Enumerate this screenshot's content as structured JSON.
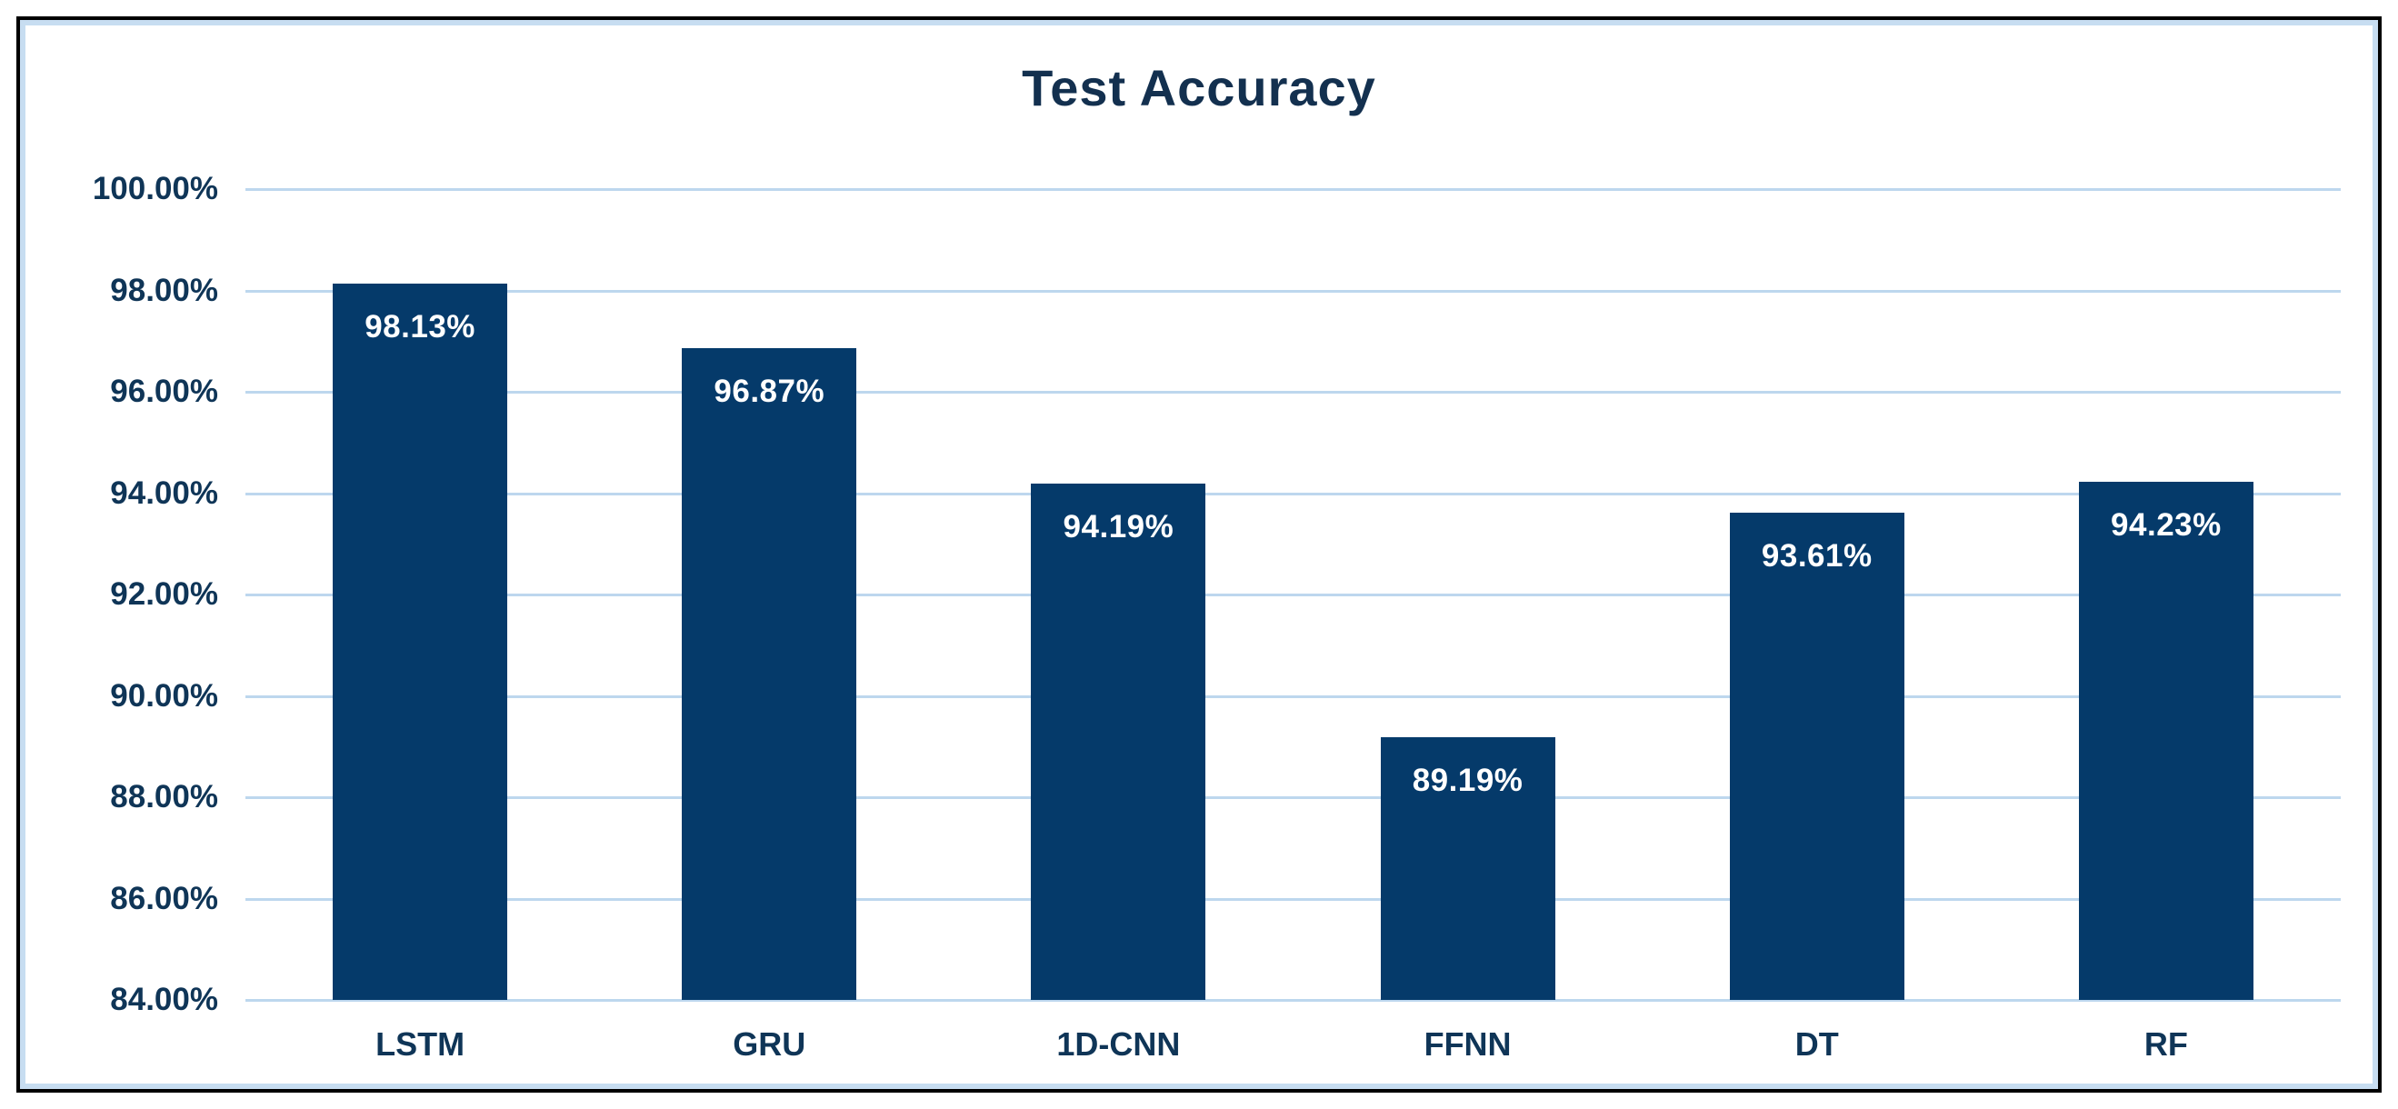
{
  "chart_data": {
    "type": "bar",
    "title": "Test Accuracy",
    "categories": [
      "LSTM",
      "GRU",
      "1D-CNN",
      "FFNN",
      "DT",
      "RF"
    ],
    "values": [
      98.13,
      96.87,
      94.19,
      89.19,
      93.61,
      94.23
    ],
    "bar_labels": [
      "98.13%",
      "96.87%",
      "94.19%",
      "89.19%",
      "93.61%",
      "94.23%"
    ],
    "xlabel": "",
    "ylabel": "",
    "ylim": [
      84,
      100
    ],
    "yticks": [
      {
        "value": 100,
        "label": "100.00%"
      },
      {
        "value": 98,
        "label": "98.00%"
      },
      {
        "value": 96,
        "label": "96.00%"
      },
      {
        "value": 94,
        "label": "94.00%"
      },
      {
        "value": 92,
        "label": "92.00%"
      },
      {
        "value": 90,
        "label": "90.00%"
      },
      {
        "value": 88,
        "label": "88.00%"
      },
      {
        "value": 86,
        "label": "86.00%"
      },
      {
        "value": 84,
        "label": "84.00%"
      }
    ],
    "grid": true,
    "legend_position": "none",
    "colors": {
      "bar_fill": "#053A6A",
      "bar_label_text": "#FFFFFF",
      "axis_text": "#0F3557",
      "title_text": "#13304F",
      "gridline": "#BDD7EE",
      "inner_border": "#C7DDF1",
      "outer_border": "#000000",
      "background": "#FFFFFF"
    }
  }
}
